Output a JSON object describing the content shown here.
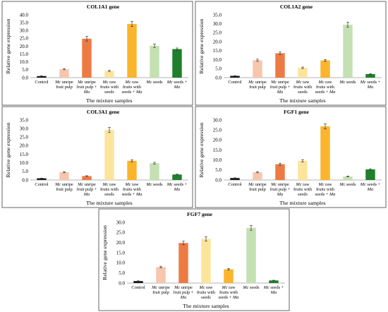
{
  "colors": [
    "#1a1a1a",
    "#f6c6ad",
    "#ed7a44",
    "#fde49b",
    "#fbb42c",
    "#c5e0b3",
    "#1f7f2a"
  ],
  "categories": [
    [
      {
        "t": "Control",
        "i": false
      }
    ],
    [
      {
        "t": "Mc",
        "i": true
      },
      {
        "t": " unripe fruit pulp",
        "i": false
      }
    ],
    [
      {
        "t": "Mc",
        "i": true
      },
      {
        "t": " unripe fruit pulp + ",
        "i": false
      },
      {
        "t": "Ma",
        "i": true
      }
    ],
    [
      {
        "t": "Mc",
        "i": true
      },
      {
        "t": " raw fruits with seeds",
        "i": false
      }
    ],
    [
      {
        "t": "Mc",
        "i": true
      },
      {
        "t": " raw fruits with seeds + ",
        "i": false
      },
      {
        "t": "Ma",
        "i": true
      }
    ],
    [
      {
        "t": "Mc",
        "i": true
      },
      {
        "t": " seeds",
        "i": false
      }
    ],
    [
      {
        "t": "Mc",
        "i": true
      },
      {
        "t": " seeds + ",
        "i": false
      },
      {
        "t": "Ma",
        "i": true
      }
    ]
  ],
  "chart_data": [
    {
      "type": "bar",
      "title": "COL1A1 gene",
      "ylabel": "Relative gene expression",
      "xlabel": "The mixture samples",
      "ylim": [
        0,
        40
      ],
      "yticks": [
        "0.0",
        "5.0",
        "10.0",
        "15.0",
        "20.0",
        "25.0",
        "30.0",
        "35.0",
        "40.0"
      ],
      "values": [
        1.0,
        5.4,
        24.8,
        4.3,
        34.2,
        20.3,
        18.2
      ],
      "errors": [
        0.2,
        0.4,
        1.5,
        0.4,
        1.6,
        1.1,
        0.7
      ]
    },
    {
      "type": "bar",
      "title": "COL1A2 gene",
      "ylabel": "Relative gene expression",
      "xlabel": "The mixture samples",
      "ylim": [
        0,
        35
      ],
      "yticks": [
        "0.0",
        "5.0",
        "10.0",
        "15.0",
        "20.0",
        "25.0",
        "30.0",
        "35.0"
      ],
      "values": [
        1.0,
        9.7,
        13.6,
        5.5,
        9.6,
        29.5,
        2.0
      ],
      "errors": [
        0.1,
        0.6,
        0.7,
        0.4,
        0.5,
        1.4,
        0.2
      ]
    },
    {
      "type": "bar",
      "title": "COL3A1 gene",
      "ylabel": "Relative gene expression",
      "xlabel": "The mixture samples",
      "ylim": [
        0,
        35
      ],
      "yticks": [
        "0.0",
        "5.0",
        "10.0",
        "15.0",
        "20.0",
        "25.0",
        "30.0",
        "35.0"
      ],
      "values": [
        1.0,
        4.5,
        2.3,
        29.2,
        11.2,
        9.8,
        3.2
      ],
      "errors": [
        0.1,
        0.3,
        0.2,
        1.5,
        0.6,
        0.5,
        0.2
      ]
    },
    {
      "type": "bar",
      "title": "FGF1 gene",
      "ylabel": "Relative gene expression",
      "xlabel": "The mixture samples",
      "ylim": [
        0,
        30
      ],
      "yticks": [
        "0.0",
        "5.0",
        "10.0",
        "15.0",
        "20.0",
        "25.0",
        "30.0"
      ],
      "values": [
        1.0,
        3.9,
        7.9,
        9.6,
        26.8,
        1.8,
        5.3
      ],
      "errors": [
        0.1,
        0.3,
        0.5,
        0.6,
        1.3,
        0.2,
        0.3
      ]
    },
    {
      "type": "bar",
      "title": "FGF7 gene",
      "ylabel": "Relative gene expression",
      "xlabel": "The mixture samples",
      "ylim": [
        0,
        30
      ],
      "yticks": [
        "0.0",
        "5.0",
        "10.0",
        "15.0",
        "20.0",
        "25.0",
        "30.0"
      ],
      "values": [
        1.0,
        7.9,
        19.8,
        21.8,
        6.8,
        27.3,
        1.3
      ],
      "errors": [
        0.1,
        0.4,
        0.9,
        1.1,
        0.4,
        1.2,
        0.1
      ]
    }
  ]
}
